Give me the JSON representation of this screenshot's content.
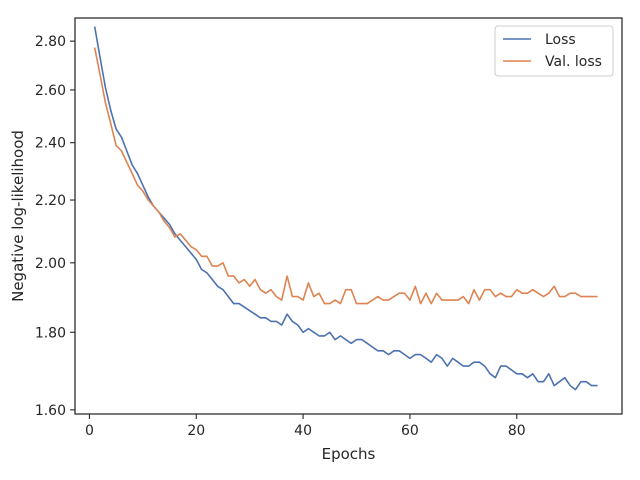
{
  "chart_data": {
    "type": "line",
    "title": "",
    "xlabel": "Epochs",
    "ylabel": "Negative log-likelihood",
    "xlim": [
      -2.7,
      99.7
    ],
    "ylim": [
      1.59,
      2.9
    ],
    "y_scale": "log",
    "x_ticks": [
      0,
      20,
      40,
      60,
      80
    ],
    "x_tick_labels": [
      "0",
      "20",
      "40",
      "60",
      "80"
    ],
    "y_ticks": [
      1.6,
      1.8,
      2.0,
      2.2,
      2.4,
      2.6,
      2.8
    ],
    "y_tick_labels": [
      "1.60",
      "1.80",
      "2.00",
      "2.20",
      "2.40",
      "2.60",
      "2.80"
    ],
    "grid": false,
    "legend_position": "top-right",
    "series": [
      {
        "name": "Loss",
        "color": "#4c72b0",
        "x": [
          1,
          2,
          3,
          4,
          5,
          6,
          7,
          8,
          9,
          10,
          11,
          12,
          13,
          14,
          15,
          16,
          17,
          18,
          19,
          20,
          21,
          22,
          23,
          24,
          25,
          26,
          27,
          28,
          29,
          30,
          31,
          32,
          33,
          34,
          35,
          36,
          37,
          38,
          39,
          40,
          41,
          42,
          43,
          44,
          45,
          46,
          47,
          48,
          49,
          50,
          51,
          52,
          53,
          54,
          55,
          56,
          57,
          58,
          59,
          60,
          61,
          62,
          63,
          64,
          65,
          66,
          67,
          68,
          69,
          70,
          71,
          72,
          73,
          74,
          75,
          76,
          77,
          78,
          79,
          80,
          81,
          82,
          83,
          84,
          85,
          86,
          87,
          88,
          89,
          90,
          91,
          92,
          93,
          94,
          95
        ],
        "values": [
          2.86,
          2.73,
          2.61,
          2.52,
          2.45,
          2.42,
          2.37,
          2.32,
          2.29,
          2.25,
          2.21,
          2.18,
          2.16,
          2.14,
          2.12,
          2.09,
          2.07,
          2.05,
          2.03,
          2.01,
          1.98,
          1.97,
          1.95,
          1.93,
          1.92,
          1.9,
          1.88,
          1.88,
          1.87,
          1.86,
          1.85,
          1.84,
          1.84,
          1.83,
          1.83,
          1.82,
          1.85,
          1.83,
          1.82,
          1.8,
          1.81,
          1.8,
          1.79,
          1.79,
          1.8,
          1.78,
          1.79,
          1.78,
          1.77,
          1.78,
          1.78,
          1.77,
          1.76,
          1.75,
          1.75,
          1.74,
          1.75,
          1.75,
          1.74,
          1.73,
          1.74,
          1.74,
          1.73,
          1.72,
          1.74,
          1.73,
          1.71,
          1.73,
          1.72,
          1.71,
          1.71,
          1.72,
          1.72,
          1.71,
          1.69,
          1.68,
          1.71,
          1.71,
          1.7,
          1.69,
          1.69,
          1.68,
          1.69,
          1.67,
          1.67,
          1.69,
          1.66,
          1.67,
          1.68,
          1.66,
          1.65,
          1.67,
          1.67,
          1.66,
          1.66
        ]
      },
      {
        "name": "Val. loss",
        "color": "#dd8452",
        "x": [
          1,
          2,
          3,
          4,
          5,
          6,
          7,
          8,
          9,
          10,
          11,
          12,
          13,
          14,
          15,
          16,
          17,
          18,
          19,
          20,
          21,
          22,
          23,
          24,
          25,
          26,
          27,
          28,
          29,
          30,
          31,
          32,
          33,
          34,
          35,
          36,
          37,
          38,
          39,
          40,
          41,
          42,
          43,
          44,
          45,
          46,
          47,
          48,
          49,
          50,
          51,
          52,
          53,
          54,
          55,
          56,
          57,
          58,
          59,
          60,
          61,
          62,
          63,
          64,
          65,
          66,
          67,
          68,
          69,
          70,
          71,
          72,
          73,
          74,
          75,
          76,
          77,
          78,
          79,
          80,
          81,
          82,
          83,
          84,
          85,
          86,
          87,
          88,
          89,
          90,
          91,
          92,
          93,
          94,
          95
        ],
        "values": [
          2.77,
          2.66,
          2.55,
          2.47,
          2.39,
          2.37,
          2.33,
          2.29,
          2.25,
          2.23,
          2.2,
          2.18,
          2.16,
          2.13,
          2.11,
          2.08,
          2.09,
          2.07,
          2.05,
          2.04,
          2.02,
          2.02,
          1.99,
          1.99,
          2.0,
          1.96,
          1.96,
          1.94,
          1.95,
          1.93,
          1.95,
          1.92,
          1.91,
          1.92,
          1.9,
          1.89,
          1.96,
          1.9,
          1.9,
          1.89,
          1.94,
          1.9,
          1.91,
          1.88,
          1.88,
          1.89,
          1.88,
          1.92,
          1.92,
          1.88,
          1.88,
          1.88,
          1.89,
          1.9,
          1.89,
          1.89,
          1.9,
          1.91,
          1.91,
          1.89,
          1.93,
          1.88,
          1.91,
          1.88,
          1.91,
          1.89,
          1.89,
          1.89,
          1.89,
          1.9,
          1.88,
          1.92,
          1.89,
          1.92,
          1.92,
          1.9,
          1.91,
          1.9,
          1.9,
          1.92,
          1.91,
          1.91,
          1.92,
          1.91,
          1.9,
          1.91,
          1.93,
          1.9,
          1.9,
          1.91,
          1.91,
          1.9,
          1.9,
          1.9,
          1.9
        ]
      }
    ]
  }
}
